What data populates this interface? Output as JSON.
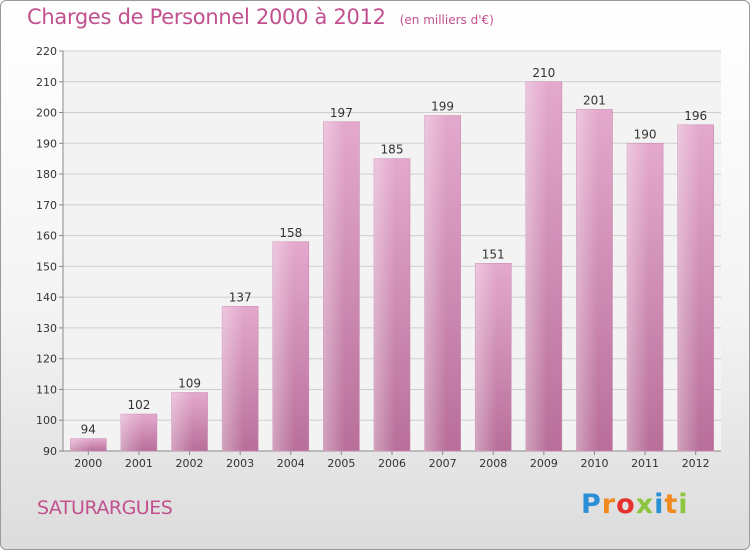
{
  "title": "Charges de Personnel 2000 à 2012",
  "subtitle": "(en milliers d'€)",
  "commune": "SATURARGUES",
  "logo": {
    "letters": [
      "P",
      "r",
      "o",
      "x",
      "i",
      "t",
      "i"
    ],
    "colors": [
      "#2b8fd6",
      "#f08a1e",
      "#e5322d",
      "#8cc63f",
      "#2b8fd6",
      "#f08a1e",
      "#8cc63f"
    ]
  },
  "colors": {
    "bar_top": "#e4a9cd",
    "bar_bottom": "#b86f9a",
    "text": "#c2508f"
  },
  "chart_data": {
    "type": "bar",
    "categories": [
      "2000",
      "2001",
      "2002",
      "2003",
      "2004",
      "2005",
      "2006",
      "2007",
      "2008",
      "2009",
      "2010",
      "2011",
      "2012"
    ],
    "values": [
      94,
      102,
      109,
      137,
      158,
      197,
      185,
      199,
      151,
      210,
      201,
      190,
      196
    ],
    "ylim": [
      90,
      220
    ],
    "yticks": [
      90,
      100,
      110,
      120,
      130,
      140,
      150,
      160,
      170,
      180,
      190,
      200,
      210,
      220
    ],
    "grid": true,
    "data_labels": true
  }
}
